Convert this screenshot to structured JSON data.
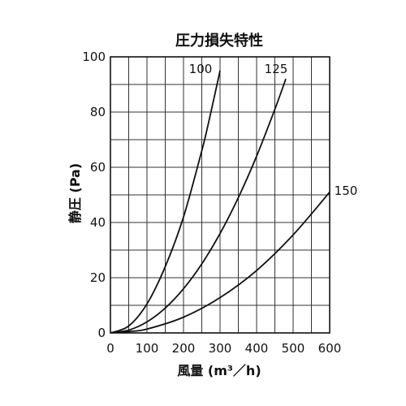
{
  "chart_data": {
    "type": "line",
    "title": "圧力損失特性",
    "xlabel": "風量 (m³／h)",
    "ylabel": "静圧 (Pa)",
    "xlim": [
      0,
      600
    ],
    "ylim": [
      0,
      100
    ],
    "x_ticks": [
      "0",
      "100",
      "200",
      "300",
      "400",
      "500",
      "600"
    ],
    "y_ticks": [
      "0",
      "20",
      "40",
      "60",
      "80",
      "100"
    ],
    "grid": true,
    "minor_grid_x_step": 50,
    "minor_grid_y_step": 10,
    "series": [
      {
        "name": "100",
        "x": [
          0,
          50,
          100,
          150,
          200,
          250,
          270,
          300
        ],
        "y": [
          0,
          2.5,
          10.5,
          24,
          42,
          66,
          77,
          95
        ]
      },
      {
        "name": "125",
        "x": [
          0,
          50,
          100,
          150,
          200,
          250,
          300,
          350,
          400,
          450,
          480
        ],
        "y": [
          0,
          1,
          4,
          9,
          16,
          25,
          36,
          49,
          64,
          81,
          92
        ]
      },
      {
        "name": "150",
        "x": [
          0,
          50,
          100,
          200,
          300,
          400,
          500,
          600
        ],
        "y": [
          0,
          0.5,
          1.4,
          5.7,
          12.8,
          22.6,
          35.5,
          51
        ]
      }
    ],
    "line_color": "#111111",
    "grid_color": "#333333"
  }
}
